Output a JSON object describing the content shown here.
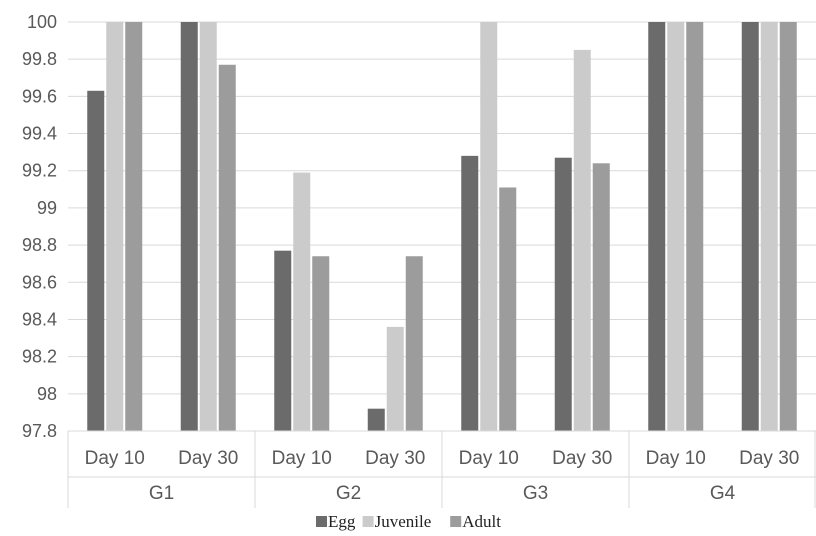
{
  "chart_data": {
    "type": "bar",
    "title": "",
    "xlabel": "",
    "ylabel": "",
    "ylim": [
      97.8,
      100
    ],
    "yticks": [
      "97.8",
      "98",
      "98.2",
      "98.4",
      "98.6",
      "98.8",
      "99",
      "99.2",
      "99.4",
      "99.6",
      "99.8",
      "100"
    ],
    "groups": [
      "G1",
      "G2",
      "G3",
      "G4"
    ],
    "categories": [
      "Day 10",
      "Day 30",
      "Day 10",
      "Day 30",
      "Day 10",
      "Day 30",
      "Day 10",
      "Day 30"
    ],
    "series": [
      {
        "name": "Egg",
        "color": "#6b6b6b",
        "values": [
          99.63,
          100,
          98.77,
          97.92,
          99.28,
          99.27,
          100,
          100
        ]
      },
      {
        "name": "Juvenile",
        "color": "#cbcbcb",
        "values": [
          100,
          100,
          99.19,
          98.36,
          100,
          99.85,
          100,
          100
        ]
      },
      {
        "name": "Adult",
        "color": "#9c9c9c",
        "values": [
          100,
          99.77,
          98.74,
          98.74,
          99.11,
          99.24,
          100,
          100
        ]
      }
    ],
    "grid": true,
    "legend_position": "bottom"
  }
}
